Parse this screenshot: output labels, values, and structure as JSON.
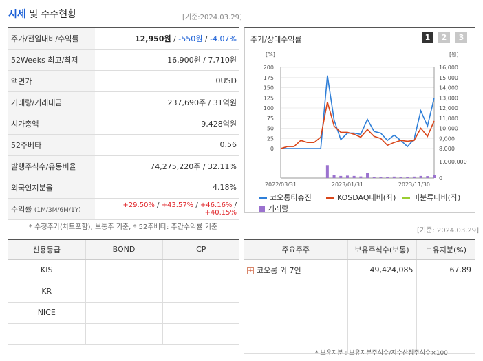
{
  "header": {
    "title_accent": "시세",
    "title_rest": "및 주주현황",
    "date": "[기준:2024.03.29]"
  },
  "quote_rows": [
    {
      "label": "주가/전일대비/수익률",
      "price": "12,950원",
      "change": "-550원",
      "rate": "-4.07%"
    },
    {
      "label": "52Weeks 최고/최저",
      "value": "16,900원 / 7,710원"
    },
    {
      "label": "액면가",
      "value": "0USD"
    },
    {
      "label": "거래량/거래대금",
      "value": "237,690주 / 31억원"
    },
    {
      "label": "시가총액",
      "value": "9,428억원"
    },
    {
      "label": "52주베타",
      "value": "0.56"
    },
    {
      "label": "발행주식수/유동비율",
      "value": "74,275,220주 / 32.11%"
    },
    {
      "label": "외국인지분율",
      "value": "4.18%"
    },
    {
      "label": "수익률",
      "label_sub": "(1M/3M/6M/1Y)",
      "r1": "+29.50%",
      "r2": "+43.57%",
      "r3": "+46.16%",
      "r4": "+40.15%"
    }
  ],
  "quote_note": "* 수정주가(차트포함), 보통주 기준, * 52주베타: 주간수익률 기준",
  "chart": {
    "title": "주가/상대수익률",
    "pages": [
      "1",
      "2",
      "3"
    ],
    "left_unit": "[%]",
    "right_unit": "[원]",
    "left_ticks": [
      "200",
      "175",
      "150",
      "125",
      "100",
      "75",
      "50",
      "25",
      "0"
    ],
    "right_ticks": [
      "16,000",
      "15,000",
      "14,000",
      "13,000",
      "12,000",
      "11,000",
      "10,000",
      "9,000",
      "8,000"
    ],
    "vol_tick": "1,000,000",
    "vol_zero": "0",
    "x_ticks": [
      "2022/03/31",
      "2023/01/31",
      "2023/11/30"
    ],
    "legend": {
      "s1": "코오롱티슈진",
      "s2": "KOSDAQ대비(좌)",
      "s3": "미분류대비(좌)",
      "s4": "거래량"
    },
    "colors": {
      "price": "#2f7fd8",
      "kosdaq": "#d9461a",
      "misc": "#9acd32",
      "volume": "#9b72cf"
    }
  },
  "chart_data": {
    "type": "line",
    "x": [
      "2022/03",
      "2022/05",
      "2022/06",
      "2022/07",
      "2022/08",
      "2022/09",
      "2022/10",
      "2022/11",
      "2022/12",
      "2023/01",
      "2023/02",
      "2023/03",
      "2023/04",
      "2023/05",
      "2023/06",
      "2023/07",
      "2023/08",
      "2023/09",
      "2023/10",
      "2023/11",
      "2023/12",
      "2024/01",
      "2024/02",
      "2024/03"
    ],
    "series": [
      {
        "name": "코오롱티슈진",
        "axis": "left",
        "values": [
          0,
          0,
          0,
          0,
          0,
          0,
          0,
          180,
          70,
          22,
          38,
          38,
          35,
          72,
          42,
          38,
          20,
          33,
          20,
          5,
          23,
          93,
          55,
          125
        ]
      },
      {
        "name": "KOSDAQ대비(좌)",
        "axis": "left",
        "values": [
          0,
          5,
          5,
          20,
          15,
          15,
          28,
          115,
          55,
          40,
          40,
          35,
          28,
          47,
          30,
          25,
          8,
          15,
          20,
          18,
          20,
          50,
          30,
          68
        ]
      }
    ],
    "volume_values": [
      0,
      0,
      0,
      0,
      0,
      0,
      0,
      780000,
      200000,
      130000,
      150000,
      130000,
      100000,
      320000,
      80000,
      70000,
      60000,
      90000,
      60000,
      80000,
      90000,
      130000,
      120000,
      180000
    ],
    "ylim_left": [
      0,
      200
    ],
    "ylim_right": [
      8000,
      16000
    ]
  },
  "credit": {
    "headers": [
      "신용등급",
      "BOND",
      "CP"
    ],
    "rows": [
      [
        "KIS",
        "",
        ""
      ],
      [
        "KR",
        "",
        ""
      ],
      [
        "NICE",
        "",
        ""
      ],
      [
        "",
        "",
        ""
      ]
    ]
  },
  "holders": {
    "date": "[기준: 2024.03.29]",
    "headers": [
      "주요주주",
      "보유주식수(보통)",
      "보유지분(%)"
    ],
    "rows": [
      {
        "name": "코오롱 외 7인",
        "shares": "49,424,085",
        "pct": "67.89"
      }
    ],
    "note": "* 보유지분 : 보유지분주식수/지수산정주식수×100"
  }
}
